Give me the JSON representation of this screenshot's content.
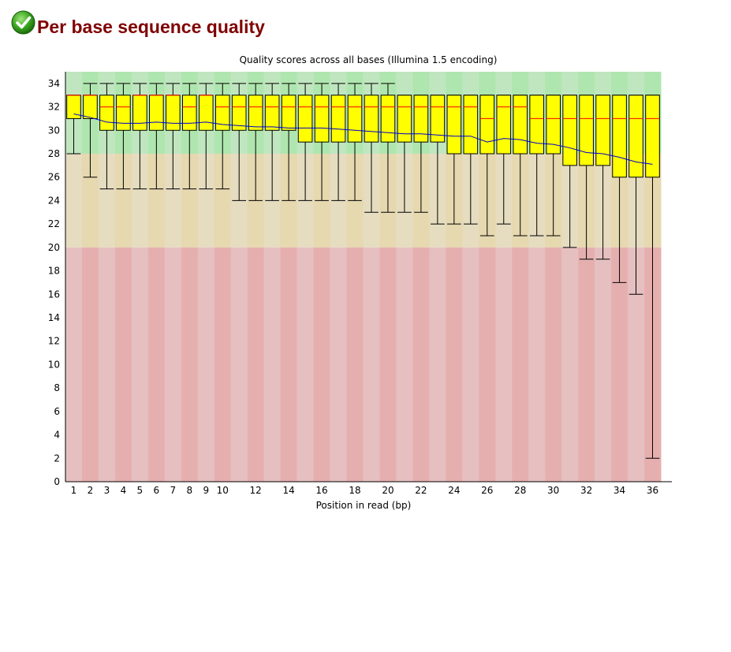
{
  "module": {
    "status_icon": "pass-check-icon",
    "title": "Per base sequence quality"
  },
  "colors": {
    "good_light": "#c0e6c0",
    "good_dark": "#afe6af",
    "warn_light": "#e6dcc0",
    "warn_dark": "#e6d8af",
    "bad_light": "#e6c0c0",
    "bad_dark": "#e6afaf",
    "box": "#ffff00",
    "median": "#ff0000",
    "mean": "#0000cc"
  },
  "chart_data": {
    "type": "boxplot",
    "title": "Quality scores across all bases (Illumina 1.5 encoding)",
    "xlabel": "Position in read (bp)",
    "ylabel": "",
    "ylim": [
      0,
      35
    ],
    "y_ticks": [
      "0",
      "2",
      "4",
      "6",
      "8",
      "10",
      "12",
      "14",
      "16",
      "18",
      "20",
      "22",
      "24",
      "26",
      "28",
      "30",
      "32",
      "34"
    ],
    "x_tick_labels": [
      "1",
      "2",
      "3",
      "4",
      "5",
      "6",
      "7",
      "8",
      "9",
      "10",
      "12",
      "14",
      "16",
      "18",
      "20",
      "22",
      "24",
      "26",
      "28",
      "30",
      "32",
      "34",
      "36"
    ],
    "bands": [
      {
        "name": "good",
        "from": 28,
        "to": 35
      },
      {
        "name": "warning",
        "from": 20,
        "to": 28
      },
      {
        "name": "poor",
        "from": 0,
        "to": 20
      }
    ],
    "positions": [
      "1",
      "2",
      "3",
      "4",
      "5",
      "6",
      "7",
      "8",
      "9",
      "10",
      "11",
      "12",
      "13",
      "14",
      "15",
      "16",
      "17",
      "18",
      "19",
      "20",
      "21",
      "22",
      "23",
      "24",
      "25",
      "26",
      "27",
      "28",
      "29",
      "30",
      "31",
      "32",
      "33",
      "34",
      "35",
      "36"
    ],
    "q10": [
      28,
      26,
      25,
      25,
      25,
      25,
      25,
      25,
      25,
      25,
      24,
      24,
      24,
      24,
      24,
      24,
      24,
      24,
      23,
      23,
      23,
      23,
      22,
      22,
      22,
      21,
      22,
      21,
      21,
      21,
      20,
      19,
      19,
      17,
      16,
      2
    ],
    "q25": [
      31,
      31,
      30,
      30,
      30,
      30,
      30,
      30,
      30,
      30,
      30,
      30,
      30,
      30,
      29,
      29,
      29,
      29,
      29,
      29,
      29,
      29,
      29,
      28,
      28,
      28,
      28,
      28,
      28,
      28,
      27,
      27,
      27,
      26,
      26,
      26
    ],
    "median": [
      33,
      33,
      32,
      32,
      33,
      33,
      33,
      32,
      33,
      32,
      32,
      32,
      32,
      32,
      32,
      32,
      32,
      32,
      32,
      32,
      32,
      32,
      32,
      32,
      32,
      31,
      32,
      32,
      31,
      31,
      31,
      31,
      31,
      31,
      31,
      31
    ],
    "q75": [
      33,
      33,
      33,
      33,
      33,
      33,
      33,
      33,
      33,
      33,
      33,
      33,
      33,
      33,
      33,
      33,
      33,
      33,
      33,
      33,
      33,
      33,
      33,
      33,
      33,
      33,
      33,
      33,
      33,
      33,
      33,
      33,
      33,
      33,
      33,
      33
    ],
    "q90": [
      33,
      34,
      34,
      34,
      34,
      34,
      34,
      34,
      34,
      34,
      34,
      34,
      34,
      34,
      34,
      34,
      34,
      34,
      34,
      34,
      33,
      33,
      33,
      33,
      33,
      33,
      33,
      33,
      33,
      33,
      33,
      33,
      33,
      33,
      33,
      33
    ],
    "mean": [
      31.4,
      31.1,
      30.7,
      30.6,
      30.6,
      30.7,
      30.6,
      30.6,
      30.7,
      30.5,
      30.4,
      30.3,
      30.3,
      30.2,
      30.2,
      30.2,
      30.1,
      30.0,
      29.9,
      29.8,
      29.7,
      29.7,
      29.6,
      29.5,
      29.5,
      29.0,
      29.3,
      29.2,
      28.9,
      28.8,
      28.5,
      28.1,
      28.0,
      27.7,
      27.3,
      27.1
    ]
  }
}
